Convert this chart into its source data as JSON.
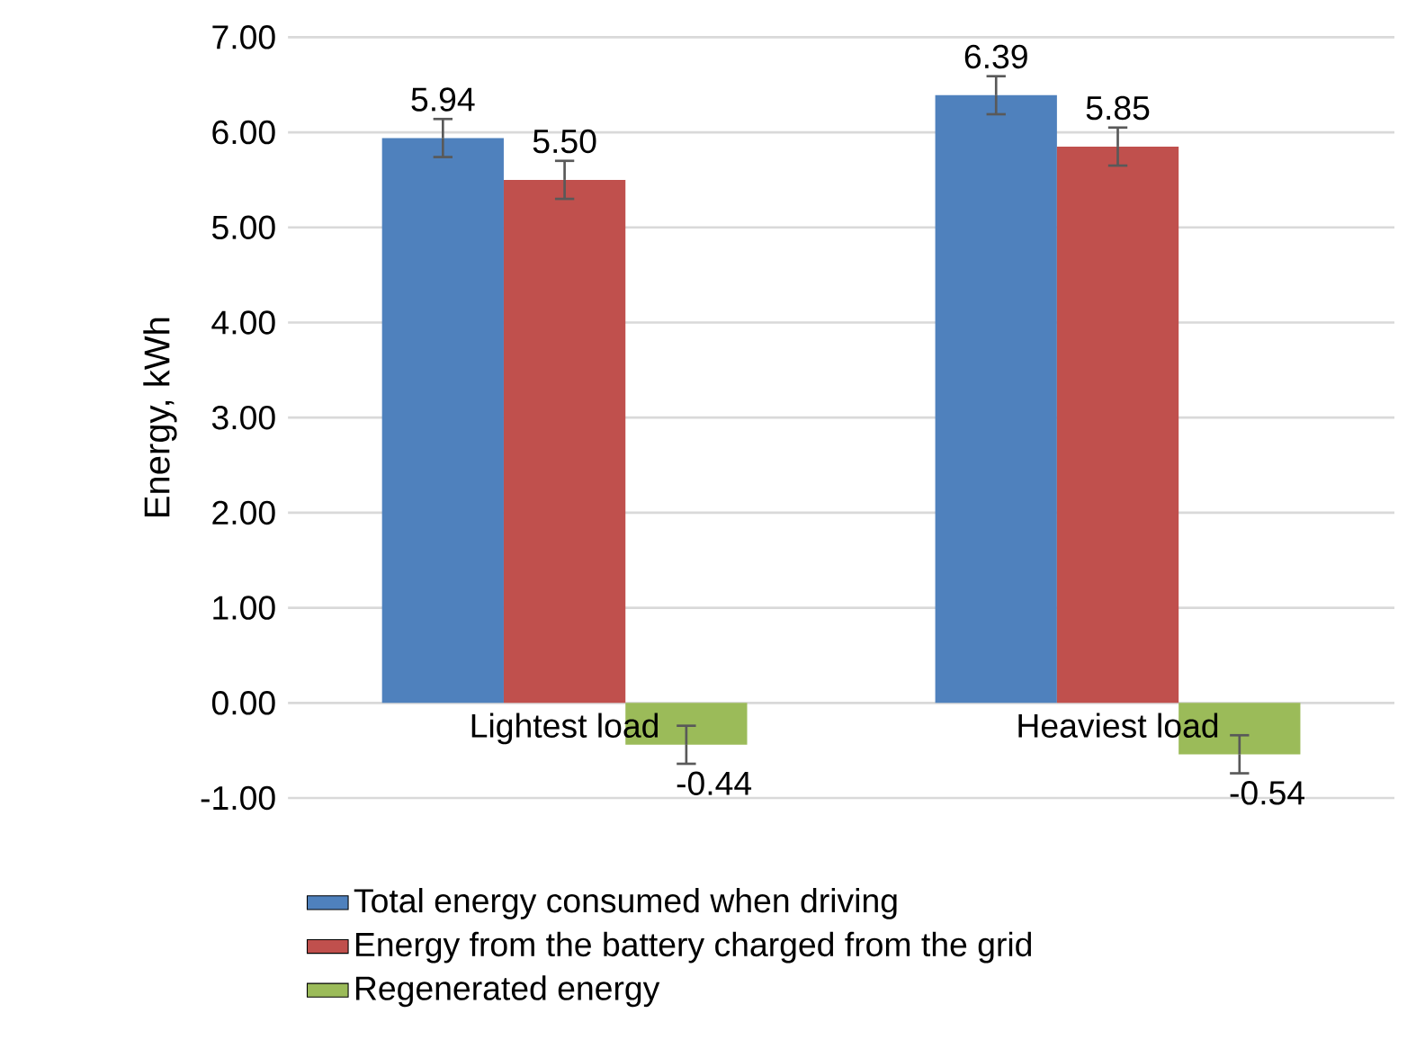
{
  "chart_data": {
    "type": "bar",
    "ylabel": "Energy, kWh",
    "categories": [
      "Lightest load",
      "Heaviest load"
    ],
    "series": [
      {
        "name": "Total energy consumed when driving",
        "color": "#4f81bd",
        "values": [
          5.94,
          6.39
        ],
        "errors": [
          0.2,
          0.2
        ],
        "value_labels": [
          "5.94",
          "6.39"
        ]
      },
      {
        "name": "Energy from the battery charged from the grid",
        "color": "#c0504d",
        "values": [
          5.5,
          5.85
        ],
        "errors": [
          0.2,
          0.2
        ],
        "value_labels": [
          "5.50",
          "5.85"
        ]
      },
      {
        "name": "Regenerated energy",
        "color": "#9bbb59",
        "values": [
          -0.44,
          -0.54
        ],
        "errors": [
          0.2,
          0.2
        ],
        "value_labels": [
          "-0.44",
          "-0.54"
        ]
      }
    ],
    "ylim": [
      -1,
      7
    ],
    "yticks": [
      {
        "value": -1,
        "label": "-1.00"
      },
      {
        "value": 0,
        "label": "0.00"
      },
      {
        "value": 1,
        "label": "1.00"
      },
      {
        "value": 2,
        "label": "2.00"
      },
      {
        "value": 3,
        "label": "3.00"
      },
      {
        "value": 4,
        "label": "4.00"
      },
      {
        "value": 5,
        "label": "5.00"
      },
      {
        "value": 6,
        "label": "6.00"
      },
      {
        "value": 7,
        "label": "7.00"
      }
    ],
    "grid": "y",
    "legend": "bottom"
  }
}
